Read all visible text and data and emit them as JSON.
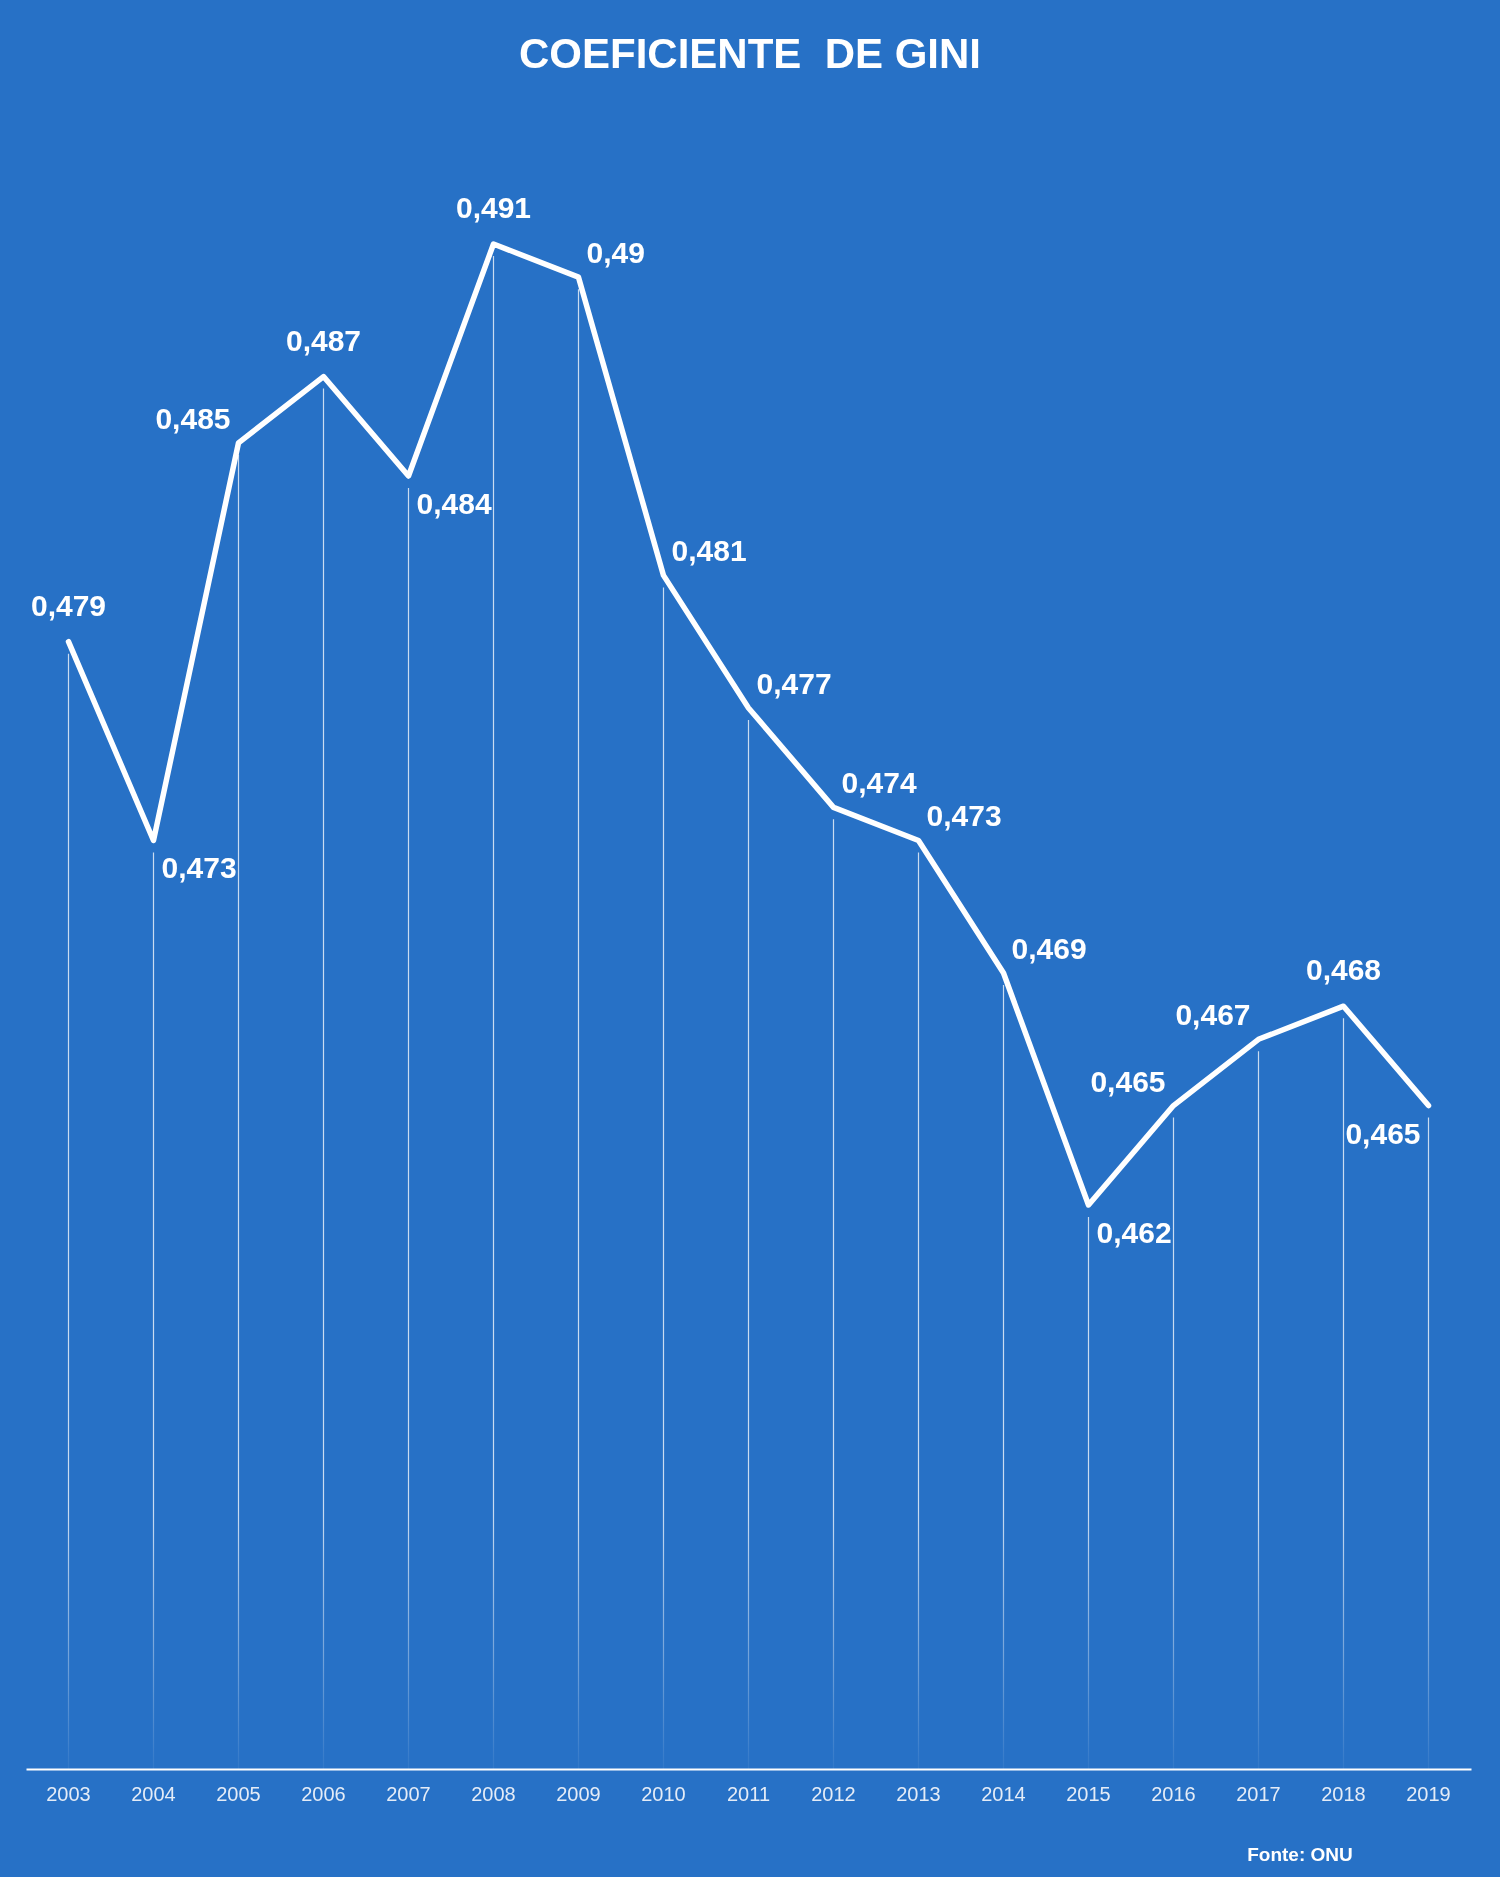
{
  "chart_data": {
    "type": "line",
    "title": "COEFICIENTE  DE GINI",
    "categories": [
      "2003",
      "2004",
      "2005",
      "2006",
      "2007",
      "2008",
      "2009",
      "2010",
      "2011",
      "2012",
      "2013",
      "2014",
      "2015",
      "2016",
      "2017",
      "2018",
      "2019"
    ],
    "values": [
      0.479,
      0.473,
      0.485,
      0.487,
      0.484,
      0.491,
      0.49,
      0.481,
      0.477,
      0.474,
      0.473,
      0.469,
      0.462,
      0.465,
      0.467,
      0.468,
      0.465
    ],
    "value_labels": [
      "0,479",
      "0,473",
      "0,485",
      "0,487",
      "0,484",
      "0,491",
      "0,49",
      "0,481",
      "0,477",
      "0,474",
      "0,473",
      "0,469",
      "0,462",
      "0,465",
      "0,467",
      "0,468",
      "0,465"
    ],
    "color": "#ffffff",
    "grid": "x",
    "tick_labels": "x",
    "marker": "none",
    "annotations": [
      "Fonte: ONU"
    ]
  }
}
